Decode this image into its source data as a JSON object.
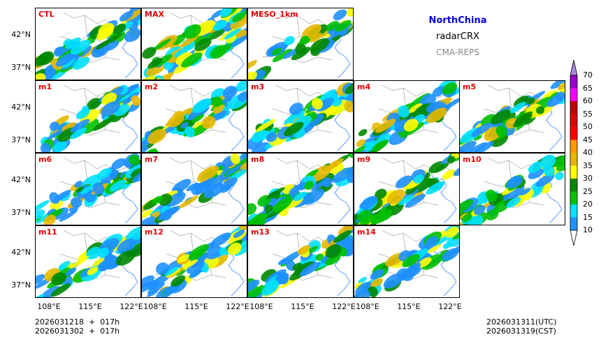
{
  "title": {
    "region": "NorthChina",
    "variable": "radarCRX",
    "model": "CMA-REPS",
    "region_color": "#0000dd",
    "model_color": "#888888"
  },
  "panels": [
    "CTL",
    "MAX",
    "MESO_1km",
    "m1",
    "m2",
    "m3",
    "m4",
    "m5",
    "m6",
    "m7",
    "m8",
    "m9",
    "m10",
    "m11",
    "m12",
    "m13",
    "m14"
  ],
  "lat_labels": [
    "42°N",
    "37°N"
  ],
  "lon_labels": [
    "108°E",
    "115°E",
    "122°E"
  ],
  "colorbar": {
    "levels": [
      10,
      15,
      20,
      25,
      30,
      35,
      40,
      45,
      50,
      55,
      60,
      65,
      70
    ],
    "colors": [
      "#1e90ff",
      "#00e0ff",
      "#00c000",
      "#008800",
      "#ffff00",
      "#e6b800",
      "#ff9900",
      "#ff0000",
      "#dd0000",
      "#bb0000",
      "#ff00ff",
      "#9900cc",
      "#aa88dd"
    ],
    "under_color": "#ffffff",
    "over_color": "#aa88dd"
  },
  "footer": {
    "init_line1": "2026031218  +  017h",
    "init_line2": "2026031302  +  017h",
    "valid_utc": "2026031311(UTC)",
    "valid_cst": "2026031319(CST)"
  }
}
